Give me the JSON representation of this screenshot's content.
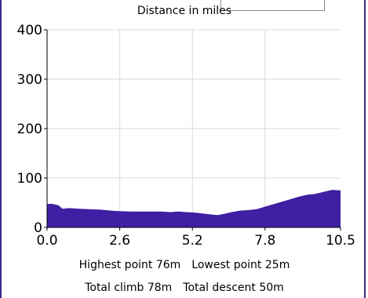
{
  "chart_data": {
    "type": "area",
    "title": "Distance in miles",
    "xlabel": "",
    "ylabel": "",
    "xlim": [
      0.0,
      10.5
    ],
    "ylim": [
      0,
      400
    ],
    "x_ticks": [
      "0.0",
      "2.6",
      "5.2",
      "7.8",
      "10.5"
    ],
    "y_ticks": [
      "0",
      "100",
      "200",
      "300",
      "400"
    ],
    "grid": true,
    "fill_color": "#3f1fa3",
    "series": [
      {
        "x": [
          0.0,
          0.15,
          0.4,
          0.55,
          0.8,
          1.1,
          1.5,
          1.9,
          2.3,
          2.6,
          3.0,
          3.4,
          3.8,
          4.1,
          4.4,
          4.7,
          5.0,
          5.3,
          5.6,
          5.9,
          6.1,
          6.3,
          6.6,
          6.9,
          7.2,
          7.5,
          7.8,
          8.1,
          8.4,
          8.7,
          9.0,
          9.3,
          9.6,
          9.9,
          10.2,
          10.5
        ],
        "values": [
          47,
          48,
          45,
          38,
          39,
          38,
          37,
          36,
          34,
          33,
          32,
          32,
          32,
          32,
          31,
          32,
          31,
          30,
          28,
          26,
          25,
          27,
          31,
          34,
          35,
          37,
          42,
          47,
          52,
          57,
          62,
          66,
          68,
          72,
          76,
          75
        ]
      }
    ]
  },
  "stats": {
    "highest_label": "Highest point",
    "highest_value": "76m",
    "lowest_label": "Lowest point",
    "lowest_value": "25m",
    "climb_label": "Total climb",
    "climb_value": "78m",
    "descent_label": "Total descent",
    "descent_value": "50m"
  }
}
